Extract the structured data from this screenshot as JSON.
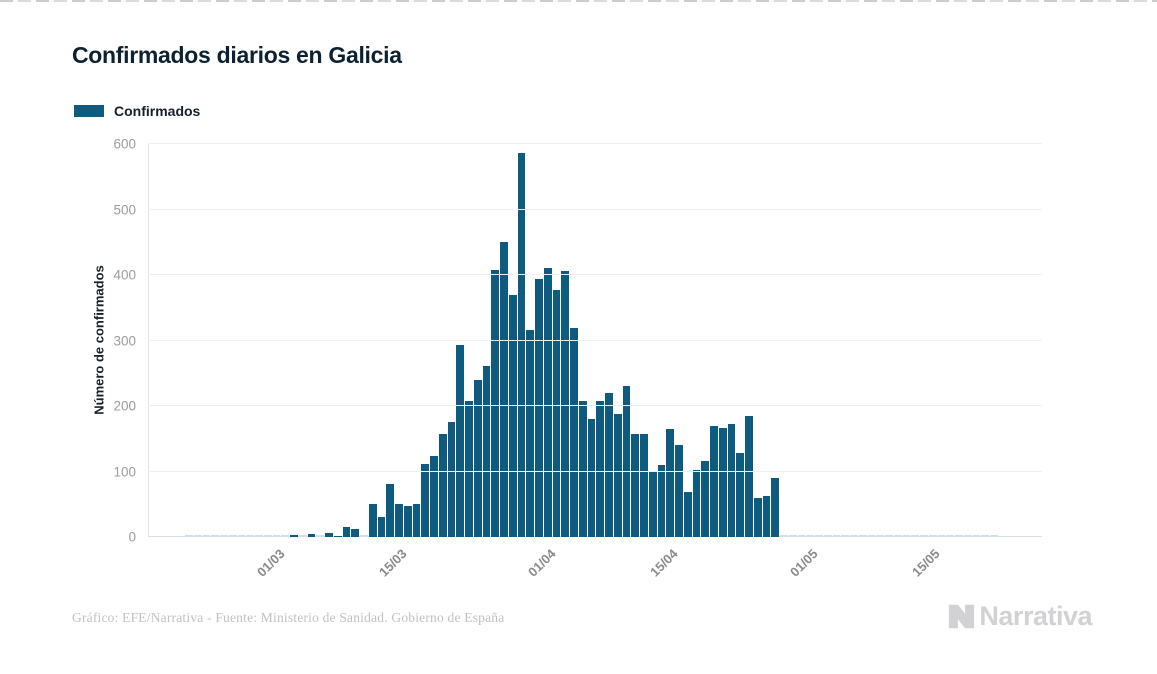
{
  "title": "Confirmados diarios en Galicia",
  "legend": {
    "label": "Confirmados",
    "color": "#0f5b80"
  },
  "y_axis": {
    "title": "Número de confirmados"
  },
  "footer": {
    "credit": "Gráfico: EFE/Narrativa - Fuente: Ministerio de Sanidad. Gobierno de España",
    "brand": "Narrativa"
  },
  "chart_data": {
    "type": "bar",
    "title": "Confirmados diarios en Galicia",
    "series_name": "Confirmados",
    "xlabel": "",
    "ylabel": "Número de confirmados",
    "ylim": [
      0,
      600
    ],
    "y_ticks": [
      0,
      100,
      200,
      300,
      400,
      500,
      600
    ],
    "grid": true,
    "legend_position": "top-left",
    "bar_color": "#0f5b80",
    "zero_bar_color": "#cfe0ea",
    "x_tick_labels": [
      "01/03",
      "15/03",
      "01/04",
      "15/04",
      "01/05",
      "15/05"
    ],
    "x_ticks": [
      {
        "label": "01/03",
        "index": 10
      },
      {
        "label": "15/03",
        "index": 24
      },
      {
        "label": "01/04",
        "index": 41
      },
      {
        "label": "15/04",
        "index": 55
      },
      {
        "label": "01/05",
        "index": 71
      },
      {
        "label": "15/05",
        "index": 85
      }
    ],
    "dates": [
      "20/02",
      "21/02",
      "22/02",
      "23/02",
      "24/02",
      "25/02",
      "26/02",
      "27/02",
      "28/02",
      "29/02",
      "01/03",
      "02/03",
      "03/03",
      "04/03",
      "05/03",
      "06/03",
      "07/03",
      "08/03",
      "09/03",
      "10/03",
      "11/03",
      "12/03",
      "13/03",
      "14/03",
      "15/03",
      "16/03",
      "17/03",
      "18/03",
      "19/03",
      "20/03",
      "21/03",
      "22/03",
      "23/03",
      "24/03",
      "25/03",
      "26/03",
      "27/03",
      "28/03",
      "29/03",
      "30/03",
      "31/03",
      "01/04",
      "02/04",
      "03/04",
      "04/04",
      "05/04",
      "06/04",
      "07/04",
      "08/04",
      "09/04",
      "10/04",
      "11/04",
      "12/04",
      "13/04",
      "14/04",
      "15/04",
      "16/04",
      "17/04",
      "18/04",
      "19/04",
      "20/04",
      "21/04",
      "22/04",
      "23/04",
      "24/04",
      "25/04",
      "26/04",
      "27/04",
      "28/04",
      "29/04",
      "30/04",
      "01/05",
      "02/05",
      "03/05",
      "04/05",
      "05/05",
      "06/05",
      "07/05",
      "08/05",
      "09/05",
      "10/05",
      "11/05",
      "12/05",
      "13/05",
      "14/05",
      "15/05",
      "16/05",
      "17/05",
      "18/05",
      "19/05",
      "20/05",
      "21/05",
      "22/05"
    ],
    "values": [
      0,
      0,
      0,
      0,
      0,
      0,
      0,
      0,
      0,
      0,
      0,
      0,
      3,
      0,
      4,
      0,
      6,
      2,
      16,
      12,
      0,
      50,
      30,
      81,
      50,
      47,
      50,
      111,
      124,
      158,
      175,
      293,
      207,
      239,
      261,
      408,
      451,
      369,
      586,
      316,
      394,
      411,
      377,
      406,
      319,
      207,
      180,
      208,
      220,
      188,
      231,
      158,
      157,
      101,
      110,
      165,
      140,
      69,
      102,
      116,
      170,
      166,
      173,
      129,
      185,
      60,
      63,
      90,
      0,
      0,
      0,
      0,
      0,
      0,
      0,
      0,
      0,
      0,
      0,
      0,
      0,
      0,
      0,
      0,
      0,
      0,
      0,
      0,
      0,
      0,
      0,
      0,
      0
    ]
  }
}
